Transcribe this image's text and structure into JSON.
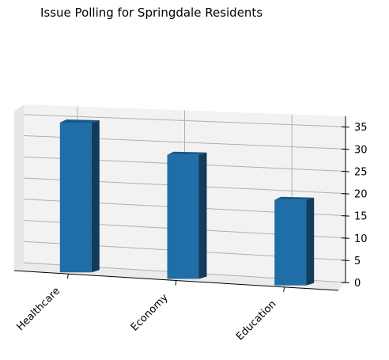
{
  "chart_data": {
    "type": "bar",
    "title": "Issue Polling for Springdale Residents",
    "categories": [
      "Healthcare",
      "Economy",
      "Education"
    ],
    "values": [
      35,
      29,
      20
    ],
    "xlabel": "",
    "ylabel": "",
    "ylim": [
      0,
      37
    ],
    "yticks": [
      0,
      5,
      10,
      15,
      20,
      25,
      30,
      35
    ],
    "grid": true,
    "legend": "none",
    "bar_color": "#1f6ea8",
    "view": "3d"
  }
}
